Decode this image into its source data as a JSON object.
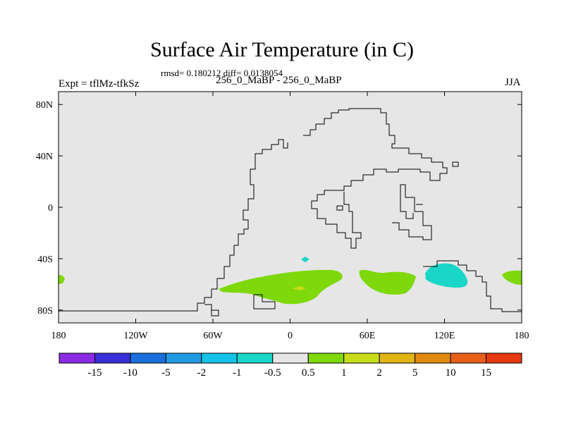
{
  "figure": {
    "title": "Surface Air Temperature (in C)",
    "stats_line": "rmsd= 0.180212 diff= 0.0138054",
    "left_label": "Expt = tflMz-tfkSz",
    "center_label": "256_0_MaBP - 256_0_MaBP",
    "right_label": "JJA"
  },
  "chart_data": {
    "type": "heatmap",
    "title": "Surface Air Temperature (in C)",
    "variable": "Surface Air Temperature difference",
    "units": "C",
    "projection": "cylindrical equidistant",
    "xlim": [
      -180,
      180
    ],
    "ylim": [
      -90,
      90
    ],
    "x_ticks": [
      -180,
      -120,
      -60,
      0,
      60,
      120,
      180
    ],
    "x_tick_labels": [
      "180",
      "120W",
      "60W",
      "0",
      "60E",
      "120E",
      "180"
    ],
    "y_ticks": [
      80,
      40,
      0,
      -40,
      -80
    ],
    "y_tick_labels": [
      "80N",
      "40N",
      "0",
      "40S",
      "80S"
    ],
    "background_bin": "-0.5 to 0.5",
    "colorbar": {
      "levels": [
        -15,
        -10,
        -5,
        -2,
        -1,
        -0.5,
        0.5,
        1,
        2,
        5,
        10,
        15
      ],
      "level_labels": [
        "-15",
        "-10",
        "-5",
        "-2",
        "-1",
        "-0.5",
        "0.5",
        "1",
        "2",
        "5",
        "10",
        "15"
      ],
      "colors": [
        "#8a2be2",
        "#3a2fd6",
        "#1a6fdc",
        "#1e9be0",
        "#16c3e6",
        "#19d6c8",
        "#e6e6e6",
        "#7ed80a",
        "#c8dc1a",
        "#e0b414",
        "#e08a10",
        "#e6601a",
        "#e63a10"
      ]
    },
    "regions": [
      {
        "name": "southern-ocean-west-warm-band",
        "lon": [
          -60,
          45
        ],
        "lat": [
          -55,
          -75
        ],
        "bin": "0.5 to 1"
      },
      {
        "name": "small-warm-patch-near-0",
        "lon": [
          3,
          12
        ],
        "lat": [
          -60,
          -62
        ],
        "bin": "1 to 2"
      },
      {
        "name": "southern-ocean-central-warm-band",
        "lon": [
          55,
          95
        ],
        "lat": [
          -47,
          -64
        ],
        "bin": "0.5 to 1"
      },
      {
        "name": "cool-patch-120E",
        "lon": [
          105,
          148
        ],
        "lat": [
          -44,
          -62
        ],
        "bin": "-1 to -0.5"
      },
      {
        "name": "small-cool-dot",
        "lon": [
          11,
          15
        ],
        "lat": [
          -37,
          -40
        ],
        "bin": "-1 to -0.5"
      },
      {
        "name": "warm-edge-180E",
        "lon": [
          165,
          180
        ],
        "lat": [
          -48,
          -60
        ],
        "bin": "0.5 to 1"
      },
      {
        "name": "warm-edge-180W",
        "lon": [
          -180,
          -176
        ],
        "lat": [
          -51,
          -57
        ],
        "bin": "0.5 to 1"
      }
    ]
  }
}
